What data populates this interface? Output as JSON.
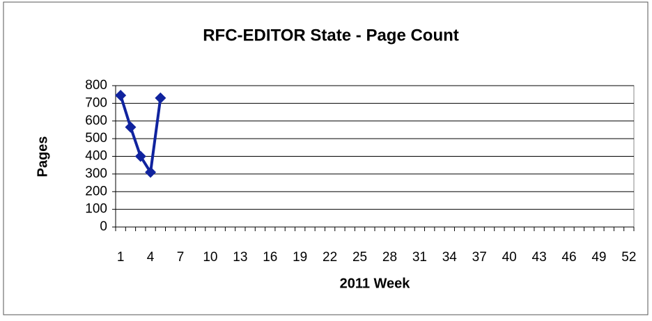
{
  "chart_data": {
    "type": "line",
    "title": "RFC-EDITOR State - Page Count",
    "x_label": "2011 Week",
    "y_label": "Pages",
    "categories": [
      1,
      null,
      null,
      4,
      null,
      null,
      7,
      null,
      null,
      10,
      null,
      null,
      13,
      null,
      null,
      16,
      null,
      null,
      19,
      null,
      null,
      22,
      null,
      null,
      25,
      null,
      null,
      28,
      null,
      null,
      31,
      null,
      null,
      34,
      null,
      null,
      37,
      null,
      null,
      40,
      null,
      null,
      43,
      null,
      null,
      46,
      null,
      null,
      49,
      null,
      null,
      52
    ],
    "values": [
      745,
      565,
      400,
      310,
      730,
      null,
      null,
      null,
      null,
      null,
      null,
      null,
      null,
      null,
      null,
      null,
      null,
      null,
      null,
      null,
      null,
      null,
      null,
      null,
      null,
      null,
      null,
      null,
      null,
      null,
      null,
      null,
      null,
      null,
      null,
      null,
      null,
      null,
      null,
      null,
      null,
      null,
      null,
      null,
      null,
      null,
      null,
      null,
      null,
      null,
      null,
      null
    ],
    "color": "#10239e",
    "ylim": [
      0,
      800
    ],
    "yticks": [
      0,
      100,
      200,
      300,
      400,
      500,
      600,
      700,
      800
    ],
    "grid": true
  }
}
